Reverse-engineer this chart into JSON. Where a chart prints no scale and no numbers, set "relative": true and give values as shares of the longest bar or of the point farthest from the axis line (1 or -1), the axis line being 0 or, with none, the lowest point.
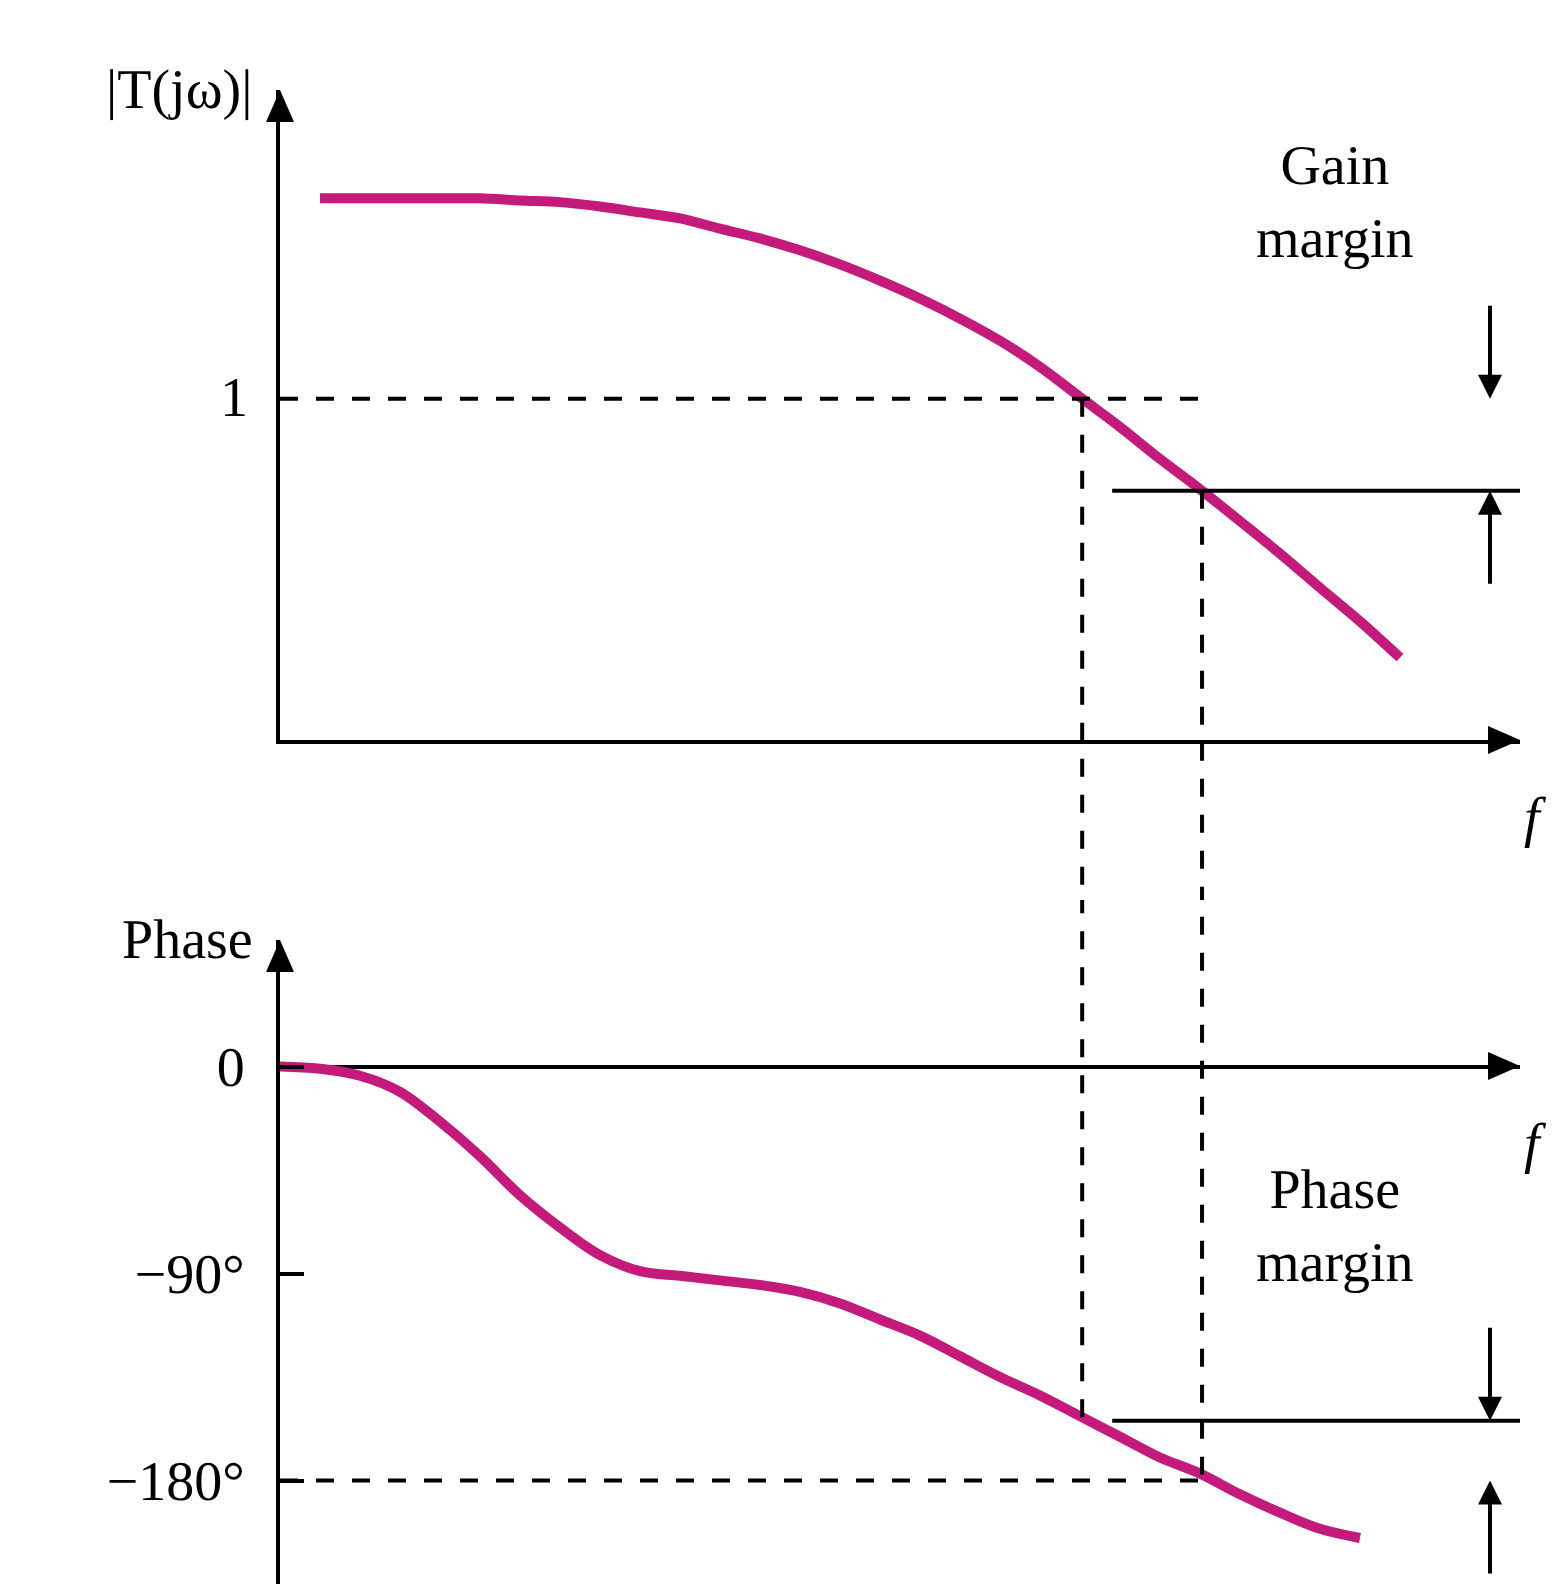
{
  "chart_data": [
    {
      "type": "line",
      "ylabel": "|T(jω)|",
      "xlabel": "f",
      "relative": true,
      "tick_labels": false,
      "line_style": "solid",
      "marker": "none",
      "categories": [
        null,
        null,
        null,
        null,
        null,
        null,
        null,
        null,
        null,
        null,
        null,
        null,
        null,
        null,
        null,
        null,
        null,
        null,
        null,
        null,
        null,
        null,
        null,
        null,
        null,
        null,
        null,
        null,
        null,
        null,
        null,
        null
      ],
      "series": [
        {
          "color": "#c41a7c",
          "values": [
            null,
            1,
            1,
            1,
            1,
            1,
            0.996,
            0.993,
            0.985,
            0.974,
            0.963,
            0.944,
            0.926,
            0.904,
            0.878,
            0.848,
            0.815,
            0.778,
            0.737,
            0.689,
            0.633,
            0.578,
            0.519,
            0.463,
            0.404,
            0.344,
            0.281,
            0.219,
            0.152,
            null,
            null,
            null
          ]
        }
      ],
      "ref_lines": [
        {
          "axis": "y",
          "value": 0.63,
          "label": "1",
          "line_style": "dashed",
          "color": "#000000"
        },
        {
          "axis": "y",
          "value": 0.46,
          "line_style": "solid",
          "color": "#000000"
        }
      ],
      "annotations": [
        "Gain margin"
      ]
    },
    {
      "type": "line",
      "ylabel": "Phase",
      "xlabel": "f",
      "tick_labels": "y",
      "line_style": "solid",
      "marker": "none",
      "ylim": [
        -225,
        55
      ],
      "yticks": [
        0,
        {
          "value": -90,
          "label": "−90°"
        },
        {
          "value": -180,
          "label": "−180°"
        }
      ],
      "categories": [
        null,
        null,
        null,
        null,
        null,
        null,
        null,
        null,
        null,
        null,
        null,
        null,
        null,
        null,
        null,
        null,
        null,
        null,
        null,
        null,
        null,
        null,
        null,
        null,
        null,
        null,
        null,
        null,
        null,
        null,
        null,
        null
      ],
      "series": [
        {
          "color": "#c41a7c",
          "values": [
            0,
            -1,
            -4,
            -11,
            -24,
            -39,
            -56,
            -70,
            -82,
            -89,
            -91,
            -93,
            -95,
            -98,
            -103,
            -110,
            -117,
            -126,
            -135,
            -143,
            -152,
            -161,
            -170,
            -177,
            -186,
            -194,
            -201,
            -205,
            null,
            null,
            null,
            null
          ]
        }
      ],
      "ref_lines": [
        {
          "axis": "y",
          "value": -180,
          "line_style": "dashed",
          "color": "#000000"
        },
        {
          "axis": "y",
          "value": -154,
          "line_style": "solid",
          "color": "#000000"
        }
      ],
      "annotations": [
        "Phase margin"
      ]
    }
  ]
}
